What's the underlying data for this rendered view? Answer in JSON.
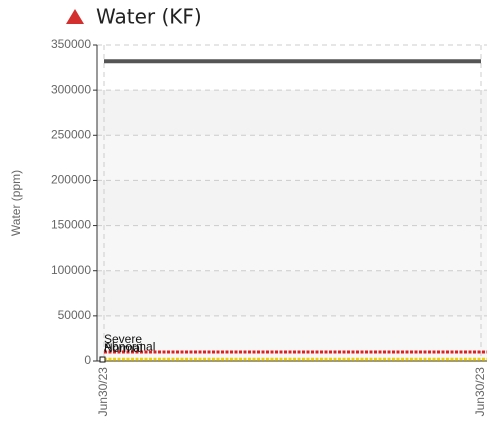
{
  "chart_data": {
    "type": "line",
    "title": "Water (KF)",
    "y_label": "Water (ppm)",
    "categories": [
      "Jun30/23",
      "Jun30/23"
    ],
    "series": [
      {
        "color": "#555555",
        "values": [
          332000,
          332000
        ]
      }
    ],
    "thresholds": [
      {
        "label": "Severe",
        "value": 10000,
        "color": "#e02020"
      },
      {
        "label": "Abnormal",
        "value": 2000,
        "color": "#f0d000"
      },
      {
        "label": "Normal",
        "value": 0
      }
    ],
    "ylim": [
      0,
      350000
    ],
    "yticks": [
      0,
      50000,
      100000,
      150000,
      200000,
      250000,
      300000,
      350000
    ],
    "grid": true
  }
}
